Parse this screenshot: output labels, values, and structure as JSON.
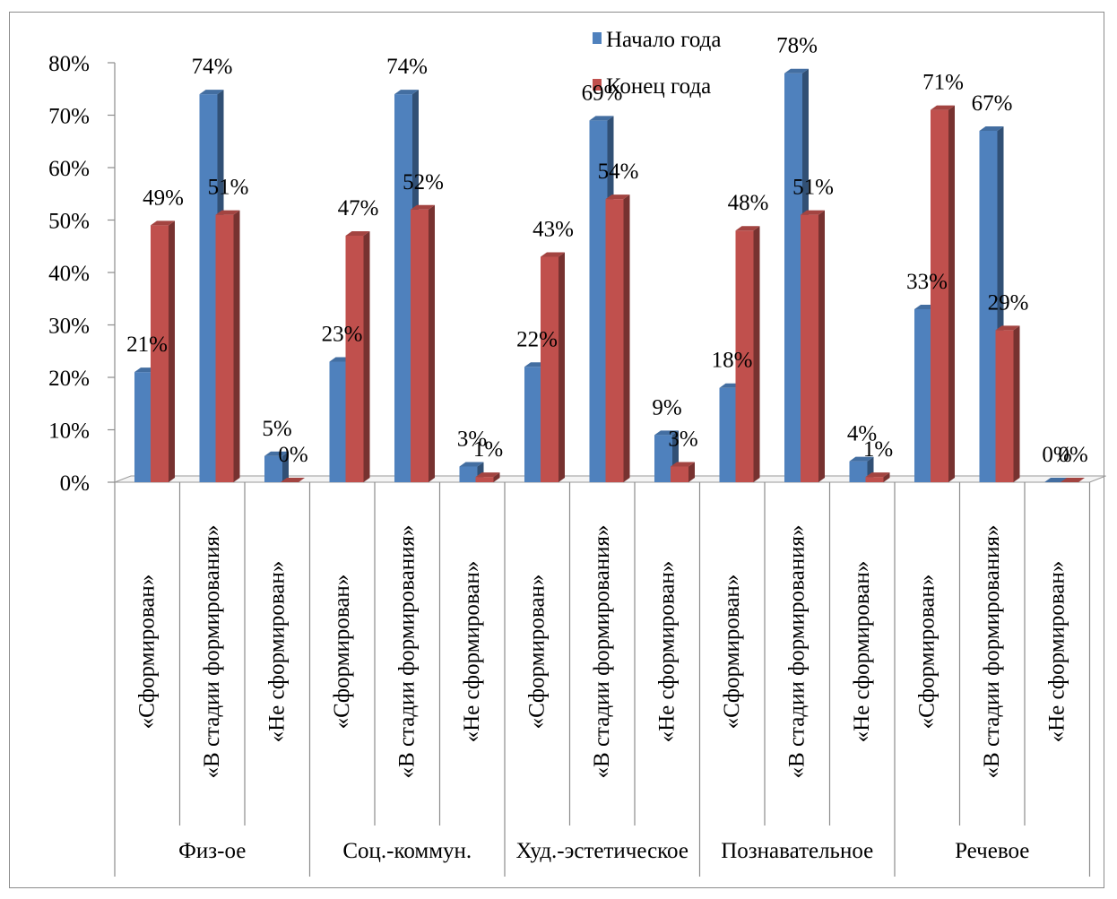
{
  "chart_data": {
    "type": "bar",
    "y_ticks": [
      "0%",
      "10%",
      "20%",
      "30%",
      "40%",
      "50%",
      "60%",
      "70%",
      "80%"
    ],
    "ylim": [
      0,
      80
    ],
    "grid": false,
    "legend_position": "top",
    "groups": [
      {
        "label": "Физ-ое",
        "categories": [
          "«Сформирован»",
          "«В стадии формирования»",
          "«Не сформирован»"
        ]
      },
      {
        "label": "Соц.-коммун.",
        "categories": [
          "«Сформирован»",
          "«В стадии формирования»",
          "«Не сформирован»"
        ]
      },
      {
        "label": "Худ.-эстетическое",
        "categories": [
          "«Сформирован»",
          "«В стадии формирования»",
          "«Не сформирован»"
        ]
      },
      {
        "label": "Познавательное",
        "categories": [
          "«Сформирован»",
          "«В стадии формирования»",
          "«Не сформирован»"
        ]
      },
      {
        "label": "Речевое",
        "categories": [
          "«Сформирован»",
          "«В стадии формирования»",
          "«Не сформирован»"
        ]
      }
    ],
    "series": [
      {
        "name": "Начало года",
        "color": "#4f81bd",
        "values": [
          21,
          74,
          5,
          23,
          74,
          3,
          22,
          69,
          9,
          18,
          78,
          4,
          33,
          67,
          0
        ],
        "labels": [
          "21%",
          "74%",
          "5%",
          "23%",
          "74%",
          "3%",
          "22%",
          "69%",
          "9%",
          "18%",
          "78%",
          "4%",
          "33%",
          "67%",
          "0%"
        ]
      },
      {
        "name": "Конец года",
        "color": "#c0504d",
        "values": [
          49,
          51,
          0,
          47,
          52,
          1,
          43,
          54,
          3,
          48,
          51,
          1,
          71,
          29,
          0
        ],
        "labels": [
          "49%",
          "51%",
          "0%",
          "47%",
          "52%",
          "1%",
          "43%",
          "54%",
          "3%",
          "48%",
          "51%",
          "1%",
          "71%",
          "29%",
          "0%"
        ]
      }
    ]
  }
}
